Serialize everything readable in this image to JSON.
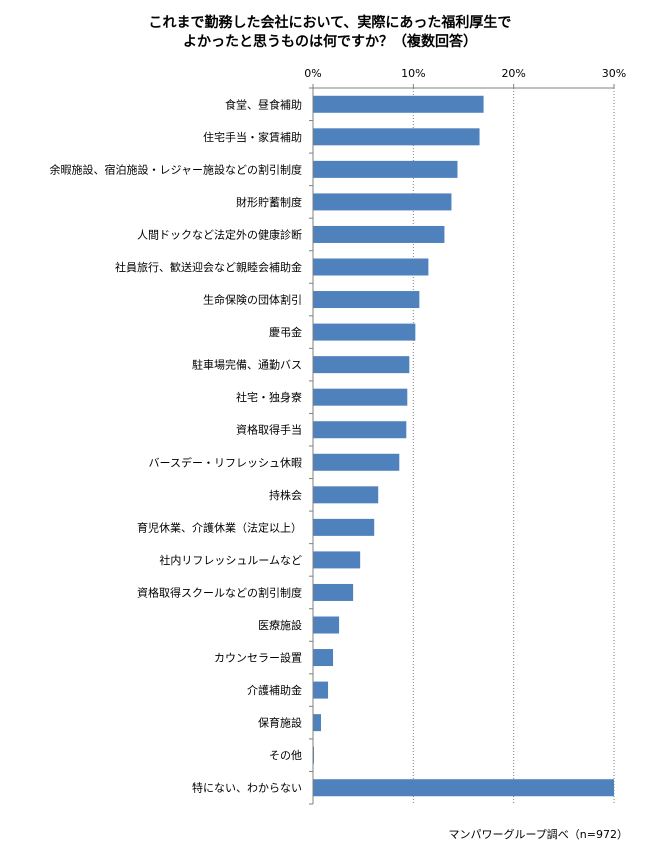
{
  "chart_data": {
    "type": "bar",
    "orientation": "horizontal",
    "title_lines": [
      "これまで勤務した会社において、実際にあった福利厚生で",
      "よかったと思うものは何ですか？（複数回答）"
    ],
    "xlim": [
      0,
      30
    ],
    "x_ticks": [
      "0%",
      "10%",
      "20%",
      "30%"
    ],
    "grid": "vertical dotted",
    "categories": [
      "食堂、昼食補助",
      "住宅手当・家賃補助",
      "余暇施設、宿泊施設・レジャー施設などの割引制度",
      "財形貯蓄制度",
      "人間ドックなど法定外の健康診断",
      "社員旅行、歓送迎会など親睦会補助金",
      "生命保険の団体割引",
      "慶弔金",
      "駐車場完備、通勤バス",
      "社宅・独身寮",
      "資格取得手当",
      "バースデー・リフレッシュ休暇",
      "持株会",
      "育児休業、介護休業（法定以上）",
      "社内リフレッシュルームなど",
      "資格取得スクールなどの割引制度",
      "医療施設",
      "カウンセラー設置",
      "介護補助金",
      "保育施設",
      "その他",
      "特にない、わからない"
    ],
    "values": [
      17.0,
      16.6,
      14.4,
      13.8,
      13.1,
      11.5,
      10.6,
      10.2,
      9.6,
      9.4,
      9.3,
      8.6,
      6.5,
      6.1,
      4.7,
      4.0,
      2.6,
      2.0,
      1.5,
      0.8,
      0.1,
      30.0
    ],
    "bar_color": "#4f81bd"
  },
  "source_note": "マンパワーグループ調べ（n=972）"
}
